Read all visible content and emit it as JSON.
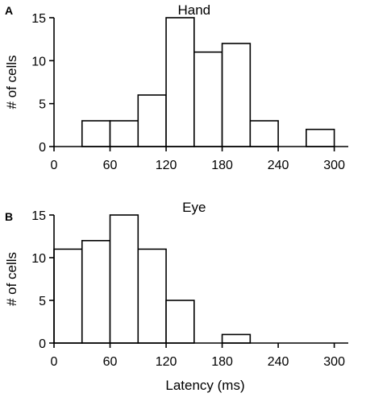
{
  "chart_data": [
    {
      "type": "bar",
      "panel_label": "A",
      "title": "Hand",
      "ylabel": "# of cells",
      "xlabel": "",
      "bin_width": 30,
      "bins": [
        {
          "start": 30,
          "value": 3
        },
        {
          "start": 60,
          "value": 3
        },
        {
          "start": 90,
          "value": 6
        },
        {
          "start": 120,
          "value": 15
        },
        {
          "start": 150,
          "value": 11
        },
        {
          "start": 180,
          "value": 12
        },
        {
          "start": 210,
          "value": 3
        },
        {
          "start": 270,
          "value": 2
        }
      ],
      "xlim": [
        0,
        315
      ],
      "ylim": [
        0,
        15
      ],
      "xticks": [
        "0",
        "60",
        "120",
        "180",
        "240",
        "300"
      ],
      "yticks": [
        "0",
        "5",
        "10",
        "15"
      ],
      "grid": false
    },
    {
      "type": "bar",
      "panel_label": "B",
      "title": "Eye",
      "ylabel": "# of cells",
      "xlabel": "Latency (ms)",
      "bin_width": 30,
      "bins": [
        {
          "start": 0,
          "value": 11
        },
        {
          "start": 30,
          "value": 12
        },
        {
          "start": 60,
          "value": 15
        },
        {
          "start": 90,
          "value": 11
        },
        {
          "start": 120,
          "value": 5
        },
        {
          "start": 180,
          "value": 1
        }
      ],
      "xlim": [
        0,
        315
      ],
      "ylim": [
        0,
        15
      ],
      "xticks": [
        "0",
        "60",
        "120",
        "180",
        "240",
        "300"
      ],
      "yticks": [
        "0",
        "5",
        "10",
        "15"
      ],
      "grid": false
    }
  ]
}
